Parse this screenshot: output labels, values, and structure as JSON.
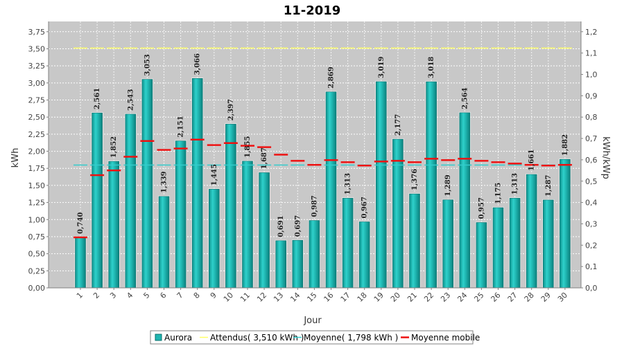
{
  "chart_data": {
    "type": "bar",
    "title": "11-2019",
    "xlabel": "Jour",
    "ylabel": "kWh",
    "y2label": "kWh/kWp",
    "ylim": [
      0,
      3.9
    ],
    "y2lim": [
      0,
      1.248
    ],
    "yticks": [
      "0,00",
      "0,25",
      "0,50",
      "0,75",
      "1,00",
      "1,25",
      "1,50",
      "1,75",
      "2,00",
      "2,25",
      "2,50",
      "2,75",
      "3,00",
      "3,25",
      "3,50",
      "3,75"
    ],
    "y2ticks": [
      "0,0",
      "0,1",
      "0,2",
      "0,3",
      "0,4",
      "0,5",
      "0,6",
      "0,7",
      "0,8",
      "0,9",
      "1,0",
      "1,1",
      "1,2"
    ],
    "grid": true,
    "legend_position": "bottom",
    "categories": [
      "1",
      "2",
      "3",
      "4",
      "5",
      "6",
      "7",
      "8",
      "9",
      "10",
      "11",
      "12",
      "13",
      "14",
      "15",
      "16",
      "17",
      "18",
      "19",
      "20",
      "21",
      "22",
      "23",
      "24",
      "25",
      "26",
      "27",
      "28",
      "29",
      "30"
    ],
    "series": [
      {
        "name": "Aurora",
        "kind": "bar",
        "color": "#1fb5b0",
        "values": [
          0.74,
          2.561,
          1.852,
          2.543,
          3.053,
          1.339,
          2.151,
          3.066,
          1.445,
          2.397,
          1.855,
          1.687,
          0.691,
          0.697,
          0.987,
          2.869,
          1.313,
          0.967,
          3.019,
          2.177,
          1.376,
          3.018,
          1.289,
          2.564,
          0.957,
          1.175,
          1.313,
          1.661,
          1.287,
          1.882
        ],
        "labels": [
          "0,740",
          "2,561",
          "1,852",
          "2,543",
          "3,053",
          "1,339",
          "2,151",
          "3,066",
          "1,445",
          "2,397",
          "1,855",
          "1,687",
          "0,691",
          "0,697",
          "0,987",
          "2,869",
          "1,313",
          "0,967",
          "3,019",
          "2,177",
          "1,376",
          "3,018",
          "1,289",
          "2,564",
          "0,957",
          "1,175",
          "1,313",
          "1,661",
          "1,287",
          "1,882"
        ]
      },
      {
        "name": "Attendus( 3,510 kWh )",
        "kind": "dash",
        "color": "#ffff66",
        "values": [
          3.51,
          3.51,
          3.51,
          3.51,
          3.51,
          3.51,
          3.51,
          3.51,
          3.51,
          3.51,
          3.51,
          3.51,
          3.51,
          3.51,
          3.51,
          3.51,
          3.51,
          3.51,
          3.51,
          3.51,
          3.51,
          3.51,
          3.51,
          3.51,
          3.51,
          3.51,
          3.51,
          3.51,
          3.51,
          3.51
        ]
      },
      {
        "name": "Moyenne( 1,798 kWh )",
        "kind": "dash",
        "color": "#33cccc",
        "values": [
          1.798,
          1.798,
          1.798,
          1.798,
          1.798,
          1.798,
          1.798,
          1.798,
          1.798,
          1.798,
          1.798,
          1.798,
          1.798,
          1.798,
          1.798,
          1.798,
          1.798,
          1.798,
          1.798,
          1.798,
          1.798,
          1.798,
          1.798,
          1.798,
          1.798,
          1.798,
          1.798,
          1.798,
          1.798,
          1.798
        ]
      },
      {
        "name": "Moyenne mobile",
        "kind": "dash",
        "color": "#ee1111",
        "values": [
          0.74,
          1.65,
          1.72,
          1.92,
          2.15,
          2.02,
          2.04,
          2.17,
          2.09,
          2.12,
          2.08,
          2.06,
          1.95,
          1.86,
          1.8,
          1.87,
          1.84,
          1.79,
          1.85,
          1.86,
          1.84,
          1.89,
          1.87,
          1.89,
          1.86,
          1.84,
          1.82,
          1.8,
          1.79,
          1.8
        ]
      }
    ]
  }
}
